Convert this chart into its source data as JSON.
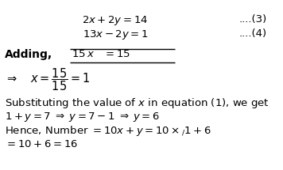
{
  "bg_color": "#ffffff",
  "figsize": [
    3.56,
    2.15
  ],
  "dpi": 100,
  "eq1_text": "$2x+2y=14$",
  "eq2_text": "$13x-2y=1$",
  "eq1_num": "....(3)",
  "eq2_num": "....(4)",
  "adding_label": "Adding,",
  "adding_expr": "$15\\,x\\quad =15$",
  "xfrac_line": "$\\Rightarrow\\quad x=\\dfrac{15}{15}=1$",
  "subst_line": "Substituting the value of $x$ in equation (1), we get",
  "solve_line": "$1+y=7\\;\\Rightarrow\\;y=7-1\\;\\Rightarrow\\;y=6$",
  "number_line": "Hence, Number $=10x+y=10\\times_{\\diagup}1+6$",
  "result_line": "$=10+6=16$",
  "font_size": 9.5,
  "small_font": 9.5
}
